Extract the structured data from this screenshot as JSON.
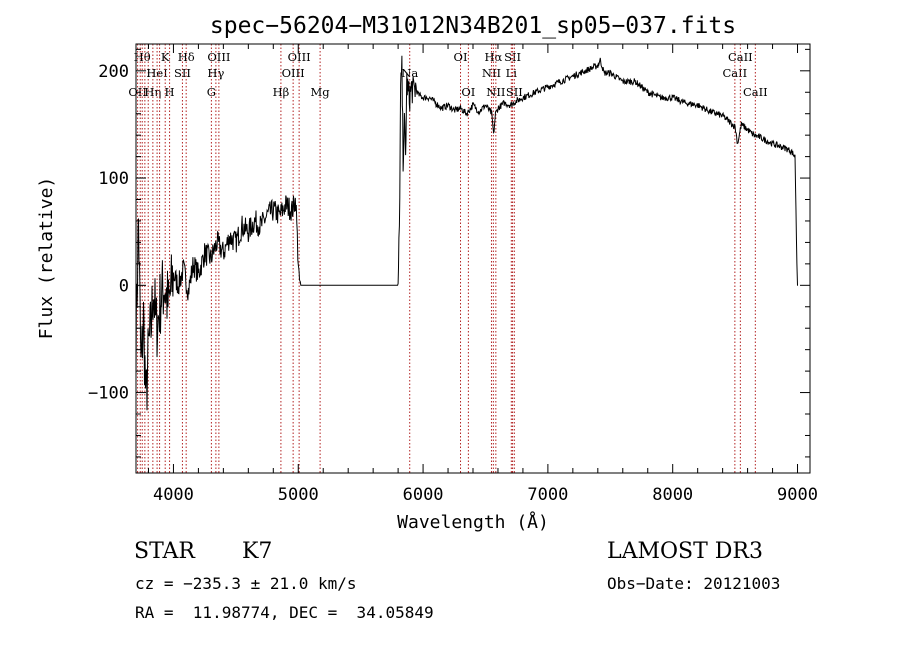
{
  "chart_data": {
    "type": "line",
    "title": "spec−56204−M31012N34B201_sp05−037.fits",
    "xlabel": "Wavelength (Å)",
    "ylabel": "Flux (relative)",
    "xlim": [
      3700,
      9100
    ],
    "ylim": [
      -175,
      225
    ],
    "x_ticks": [
      4000,
      5000,
      6000,
      7000,
      8000,
      9000
    ],
    "x_tick_labels": [
      "4000",
      "5000",
      "6000",
      "7000",
      "8000",
      "9000"
    ],
    "y_ticks": [
      -100,
      0,
      100,
      200
    ],
    "y_tick_labels": [
      "−100",
      "0",
      "100",
      "200"
    ],
    "grid": false,
    "line_color": "#000000",
    "marker_color": "#b22222",
    "series": [
      {
        "x": [
          3700,
          3720,
          3740,
          3760,
          3780,
          3800,
          3820,
          3840,
          3860,
          3880,
          3900,
          3930,
          3960,
          4000,
          4040,
          4080,
          4120,
          4160,
          4200,
          4250,
          4300,
          4350,
          4400,
          4450,
          4500,
          4550,
          4600,
          4650,
          4700,
          4750,
          4800,
          4850,
          4900,
          4950,
          4980,
          5000,
          5010,
          5020,
          5200,
          5500,
          5700,
          5800,
          5810,
          5820,
          5830,
          5840,
          5850,
          5860,
          5870,
          5880,
          5890,
          5900,
          5910,
          5920,
          5940,
          5960,
          6000,
          6050,
          6100,
          6150,
          6200,
          6250,
          6300,
          6350,
          6400,
          6450,
          6500,
          6550,
          6565,
          6580,
          6600,
          6650,
          6700,
          6750,
          6800,
          6900,
          7000,
          7100,
          7200,
          7300,
          7400,
          7420,
          7450,
          7500,
          7600,
          7700,
          7800,
          7900,
          8000,
          8100,
          8200,
          8300,
          8400,
          8500,
          8520,
          8550,
          8600,
          8650,
          8700,
          8800,
          8900,
          8950,
          8980,
          8995,
          9000,
          9003
        ],
        "y": [
          -50,
          60,
          -80,
          -30,
          -110,
          -60,
          -40,
          0,
          -40,
          -30,
          -10,
          0,
          -20,
          10,
          0,
          15,
          -5,
          20,
          10,
          30,
          25,
          40,
          30,
          45,
          40,
          55,
          50,
          60,
          55,
          65,
          70,
          65,
          75,
          70,
          80,
          20,
          5,
          0,
          0,
          0,
          0,
          0,
          50,
          180,
          200,
          120,
          150,
          120,
          190,
          180,
          175,
          180,
          185,
          180,
          185,
          178,
          175,
          175,
          170,
          165,
          168,
          163,
          165,
          160,
          168,
          162,
          168,
          160,
          140,
          160,
          165,
          170,
          168,
          172,
          175,
          180,
          185,
          190,
          195,
          200,
          205,
          210,
          198,
          198,
          190,
          190,
          180,
          175,
          175,
          170,
          168,
          162,
          158,
          148,
          132,
          150,
          145,
          140,
          138,
          132,
          128,
          125,
          120,
          20,
          0,
          0
        ]
      }
    ],
    "line_markers": [
      {
        "x": 3713,
        "label": "OII",
        "row": 3,
        "anchor": "middle"
      },
      {
        "x": 3734,
        "label": "",
        "row": 0,
        "anchor": "middle"
      },
      {
        "x": 3750,
        "label": "Hθ",
        "row": 1,
        "anchor": "middle"
      },
      {
        "x": 3771,
        "label": "",
        "row": 0,
        "anchor": "middle"
      },
      {
        "x": 3798,
        "label": "",
        "row": 0,
        "anchor": "middle"
      },
      {
        "x": 3835,
        "label": "Hη",
        "row": 3,
        "anchor": "middle"
      },
      {
        "x": 3869,
        "label": "HeI",
        "row": 2,
        "anchor": "middle"
      },
      {
        "x": 3889,
        "label": "",
        "row": 0,
        "anchor": "middle"
      },
      {
        "x": 3934,
        "label": "K",
        "row": 1,
        "anchor": "middle"
      },
      {
        "x": 3969,
        "label": "H",
        "row": 3,
        "anchor": "middle"
      },
      {
        "x": 4072,
        "label": "SII",
        "row": 2,
        "anchor": "middle"
      },
      {
        "x": 4102,
        "label": "Hδ",
        "row": 1,
        "anchor": "middle"
      },
      {
        "x": 4304,
        "label": "G",
        "row": 3,
        "anchor": "middle"
      },
      {
        "x": 4340,
        "label": "Hγ",
        "row": 2,
        "anchor": "middle"
      },
      {
        "x": 4364,
        "label": "OIII",
        "row": 1,
        "anchor": "middle"
      },
      {
        "x": 4861,
        "label": "Hβ",
        "row": 3,
        "anchor": "middle"
      },
      {
        "x": 4959,
        "label": "OIII",
        "row": 2,
        "anchor": "middle"
      },
      {
        "x": 5007,
        "label": "OIII",
        "row": 1,
        "anchor": "middle"
      },
      {
        "x": 5175,
        "label": "Mg",
        "row": 3,
        "anchor": "middle"
      },
      {
        "x": 5893,
        "label": "Na",
        "row": 2,
        "anchor": "middle"
      },
      {
        "x": 6300,
        "label": "OI",
        "row": 1,
        "anchor": "middle"
      },
      {
        "x": 6363,
        "label": "OI",
        "row": 3,
        "anchor": "middle"
      },
      {
        "x": 6548,
        "label": "NII",
        "row": 2,
        "anchor": "middle"
      },
      {
        "x": 6563,
        "label": "Hα",
        "row": 1,
        "anchor": "middle"
      },
      {
        "x": 6583,
        "label": "NII",
        "row": 3,
        "anchor": "middle"
      },
      {
        "x": 6707,
        "label": "Li",
        "row": 2,
        "anchor": "middle"
      },
      {
        "x": 6717,
        "label": "SII",
        "row": 1,
        "anchor": "middle"
      },
      {
        "x": 6731,
        "label": "SII",
        "row": 3,
        "anchor": "middle"
      },
      {
        "x": 8498,
        "label": "CaII",
        "row": 2,
        "anchor": "middle"
      },
      {
        "x": 8542,
        "label": "CaII",
        "row": 1,
        "anchor": "middle"
      },
      {
        "x": 8662,
        "label": "CaII",
        "row": 3,
        "anchor": "middle"
      }
    ]
  },
  "info": {
    "class_label": "STAR",
    "subclass_label": "K7",
    "survey_label": "LAMOST DR3",
    "cz_text": "cz = −235.3 ± 21.0 km/s",
    "obs_date_text": "Obs−Date: 20121003",
    "radec_text": "RA =  11.98774, DEC =  34.05849"
  }
}
